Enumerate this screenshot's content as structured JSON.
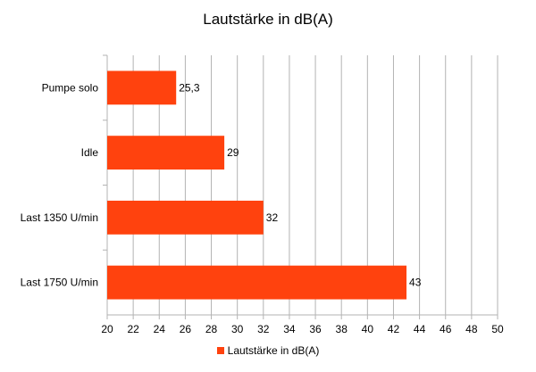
{
  "chart_data": {
    "type": "bar",
    "orientation": "horizontal",
    "title": "Lautstärke in dB(A)",
    "categories": [
      "Pumpe solo",
      "Idle",
      "Last 1350 U/min",
      "Last 1750 U/min"
    ],
    "series": [
      {
        "name": "Lautstärke in dB(A)",
        "values": [
          25.3,
          29,
          32,
          43
        ],
        "value_labels": [
          "25,3",
          "29",
          "32",
          "43"
        ],
        "color": "#ff420e"
      }
    ],
    "x_ticks": [
      "20",
      "22",
      "24",
      "26",
      "28",
      "30",
      "32",
      "34",
      "36",
      "38",
      "40",
      "42",
      "44",
      "46",
      "48",
      "50"
    ],
    "xlim": [
      20,
      50
    ],
    "grid": true,
    "legend": "bottom"
  }
}
